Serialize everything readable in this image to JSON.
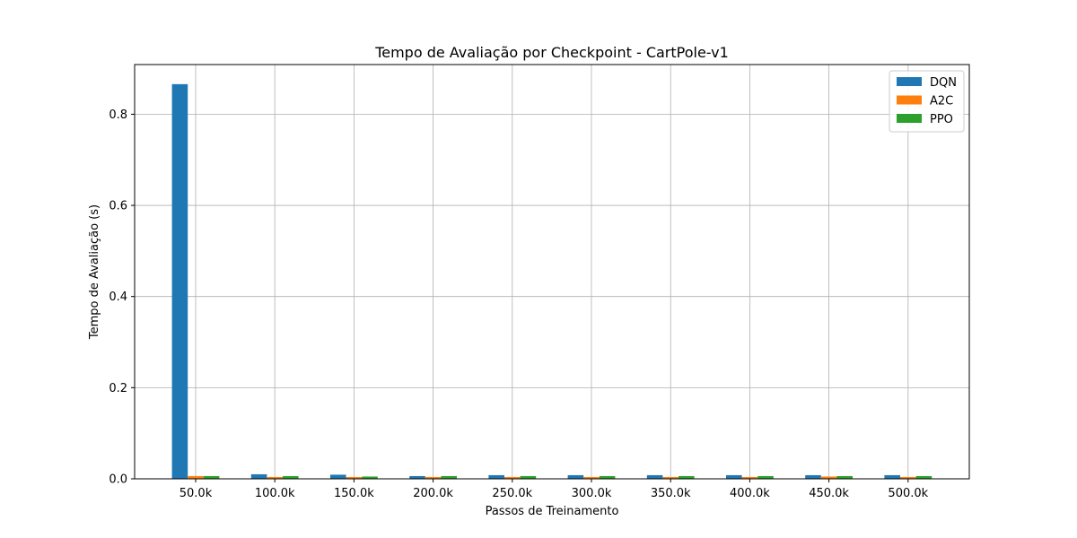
{
  "chart_data": {
    "type": "bar",
    "title": "Tempo de Avaliação por Checkpoint - CartPole-v1",
    "xlabel": "Passos de Treinamento",
    "ylabel": "Tempo de Avaliação (s)",
    "categories": [
      "50.0k",
      "100.0k",
      "150.0k",
      "200.0k",
      "250.0k",
      "300.0k",
      "350.0k",
      "400.0k",
      "450.0k",
      "500.0k"
    ],
    "series": [
      {
        "name": "DQN",
        "color": "#1f77b4",
        "values": [
          0.866,
          0.01,
          0.009,
          0.006,
          0.008,
          0.008,
          0.008,
          0.008,
          0.008,
          0.008
        ]
      },
      {
        "name": "A2C",
        "color": "#ff7f0e",
        "values": [
          0.006,
          0.004,
          0.004,
          0.004,
          0.004,
          0.004,
          0.004,
          0.004,
          0.005,
          0.004
        ]
      },
      {
        "name": "PPO",
        "color": "#2ca02c",
        "values": [
          0.006,
          0.006,
          0.005,
          0.006,
          0.006,
          0.006,
          0.006,
          0.006,
          0.006,
          0.006
        ]
      }
    ],
    "ylim": [
      0,
      0.909
    ],
    "yticks": [
      0.0,
      0.2,
      0.4,
      0.6,
      0.8
    ],
    "ytick_labels": [
      "0.0",
      "0.2",
      "0.4",
      "0.6",
      "0.8"
    ],
    "grid": true,
    "legend_position": "top-right"
  }
}
